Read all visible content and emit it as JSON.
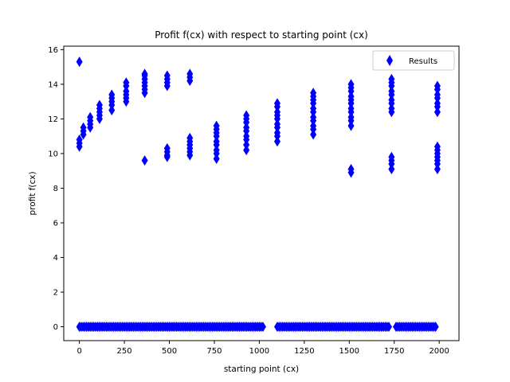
{
  "chart_data": {
    "type": "scatter",
    "title": "Profit f(cx) with respect to starting point (cx)",
    "xlabel": "starting point (cx)",
    "ylabel": "profit f(cx)",
    "xlim": [
      -87,
      2110
    ],
    "ylim": [
      -0.8,
      16.2
    ],
    "xticks": [
      0,
      250,
      500,
      750,
      1000,
      1250,
      1500,
      1750,
      2000
    ],
    "yticks": [
      0,
      2,
      4,
      6,
      8,
      10,
      12,
      14,
      16
    ],
    "grid": false,
    "legend": {
      "position": "top-right",
      "entries": [
        "Results"
      ]
    },
    "series": [
      {
        "name": "Results",
        "marker": "thin_diamond",
        "color": "#0000ff",
        "clusters": [
          {
            "x": 0,
            "y": [
              15.3,
              10.8,
              10.6,
              10.4
            ]
          },
          {
            "x": 22,
            "y": [
              11.5,
              11.3,
              11.1
            ]
          },
          {
            "x": 60,
            "y": [
              12.1,
              11.9,
              11.7,
              11.5
            ]
          },
          {
            "x": 112,
            "y": [
              12.8,
              12.6,
              12.4,
              12.2,
              12.0
            ]
          },
          {
            "x": 180,
            "y": [
              13.4,
              13.2,
              13.0,
              12.8,
              12.5
            ]
          },
          {
            "x": 260,
            "y": [
              14.1,
              13.9,
              13.6,
              13.4,
              13.2,
              13.0
            ]
          },
          {
            "x": 363,
            "y": [
              14.6,
              14.5,
              14.3,
              14.1,
              13.9,
              13.7,
              13.5
            ]
          },
          {
            "x": 363,
            "y": [
              9.6
            ]
          },
          {
            "x": 488,
            "y": [
              14.5,
              14.3,
              14.1,
              13.9
            ]
          },
          {
            "x": 488,
            "y": [
              10.3,
              10.1,
              9.9,
              9.8
            ]
          },
          {
            "x": 614,
            "y": [
              14.6,
              14.4,
              14.2
            ]
          },
          {
            "x": 614,
            "y": [
              10.9,
              10.7,
              10.5,
              10.3,
              10.1,
              9.9
            ]
          },
          {
            "x": 762,
            "y": [
              11.6,
              11.4,
              11.2,
              11.0,
              10.7,
              10.5,
              10.2,
              10.0,
              9.7
            ]
          },
          {
            "x": 928,
            "y": [
              12.2,
              12.0,
              11.8,
              11.5,
              11.3,
              11.0,
              10.8,
              10.5,
              10.2
            ]
          },
          {
            "x": 1100,
            "y": [
              12.9,
              12.7,
              12.4,
              12.2,
              12.0,
              11.7,
              11.5,
              11.2,
              11.0,
              10.7
            ]
          },
          {
            "x": 1300,
            "y": [
              13.5,
              13.3,
              13.1,
              12.9,
              12.6,
              12.4,
              12.1,
              11.9,
              11.6,
              11.4,
              11.1
            ]
          },
          {
            "x": 1510,
            "y": [
              14.0,
              13.8,
              13.6,
              13.3,
              13.1,
              12.9,
              12.6,
              12.4,
              12.1,
              11.9,
              11.6
            ]
          },
          {
            "x": 1510,
            "y": [
              9.1,
              8.9
            ]
          },
          {
            "x": 1735,
            "y": [
              14.3,
              14.1,
              13.9,
              13.6,
              13.4,
              13.1,
              12.9,
              12.6,
              12.4
            ]
          },
          {
            "x": 1735,
            "y": [
              9.8,
              9.6,
              9.4,
              9.1
            ]
          },
          {
            "x": 1990,
            "y": [
              13.9,
              13.7,
              13.4,
              13.2,
              12.9,
              12.7,
              12.4
            ]
          },
          {
            "x": 1990,
            "y": [
              10.4,
              10.2,
              10.0,
              9.8,
              9.6,
              9.4,
              9.1
            ]
          }
        ],
        "zero_ranges": [
          [
            0,
            1025
          ],
          [
            1100,
            1720
          ],
          [
            1760,
            1985
          ]
        ],
        "zero_y": 0
      }
    ]
  }
}
